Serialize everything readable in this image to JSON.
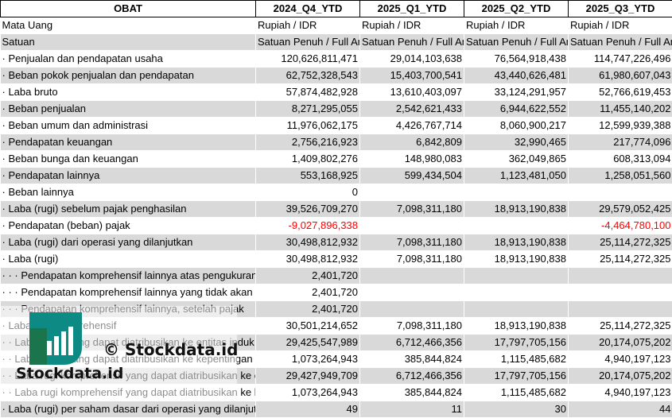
{
  "header": {
    "label": "OBAT",
    "periods": [
      "2024_Q4_YTD",
      "2025_Q1_YTD",
      "2025_Q2_YTD",
      "2025_Q3_YTD"
    ]
  },
  "rows": [
    {
      "label": "Mata Uang",
      "values": [
        "Rupiah / IDR",
        "Rupiah / IDR",
        "Rupiah / IDR",
        "Rupiah / IDR"
      ],
      "align": "left"
    },
    {
      "label": "Satuan",
      "values": [
        "Satuan Penuh / Full Amount",
        "Satuan Penuh / Full Amount",
        "Satuan Penuh / Full Amount",
        "Satuan Penuh / Full Amount"
      ],
      "align": "left"
    },
    {
      "label": "· Penjualan dan pendapatan usaha",
      "values": [
        "120,626,811,471",
        "29,014,103,638",
        "76,564,918,438",
        "114,747,226,496"
      ]
    },
    {
      "label": "· Beban pokok penjualan dan pendapatan",
      "values": [
        "62,752,328,543",
        "15,403,700,541",
        "43,440,626,481",
        "61,980,607,043"
      ]
    },
    {
      "label": "· Laba bruto",
      "values": [
        "57,874,482,928",
        "13,610,403,097",
        "33,124,291,957",
        "52,766,619,453"
      ]
    },
    {
      "label": "· Beban penjualan",
      "values": [
        "8,271,295,055",
        "2,542,621,433",
        "6,944,622,552",
        "11,455,140,202"
      ]
    },
    {
      "label": "· Beban umum dan administrasi",
      "values": [
        "11,976,062,175",
        "4,426,767,714",
        "8,060,900,217",
        "12,599,939,388"
      ]
    },
    {
      "label": "· Pendapatan keuangan",
      "values": [
        "2,756,216,923",
        "6,842,809",
        "32,990,465",
        "217,774,096"
      ]
    },
    {
      "label": "· Beban bunga dan keuangan",
      "values": [
        "1,409,802,276",
        "148,980,083",
        "362,049,865",
        "608,313,094"
      ]
    },
    {
      "label": "· Pendapatan lainnya",
      "values": [
        "553,168,925",
        "599,434,504",
        "1,123,481,050",
        "1,258,051,560"
      ]
    },
    {
      "label": "· Beban lainnya",
      "values": [
        "0",
        "",
        "",
        ""
      ]
    },
    {
      "label": "· Laba (rugi) sebelum pajak penghasilan",
      "values": [
        "39,526,709,270",
        "7,098,311,180",
        "18,913,190,838",
        "29,579,052,425"
      ]
    },
    {
      "label": "· Pendapatan (beban) pajak",
      "values": [
        "-9,027,896,338",
        "",
        "",
        "-4,464,780,100"
      ],
      "negative": [
        true,
        false,
        false,
        true
      ]
    },
    {
      "label": "· Laba (rugi) dari operasi yang dilanjutkan",
      "values": [
        "30,498,812,932",
        "7,098,311,180",
        "18,913,190,838",
        "25,114,272,325"
      ]
    },
    {
      "label": "· Laba (rugi)",
      "values": [
        "30,498,812,932",
        "7,098,311,180",
        "18,913,190,838",
        "25,114,272,325"
      ]
    },
    {
      "label": "· · · Pendapatan komprehensif lainnya atas pengukuran kembali",
      "values": [
        "2,401,720",
        "",
        "",
        ""
      ]
    },
    {
      "label": "· · · Pendapatan komprehensif lainnya yang tidak akan direklasifikasi",
      "values": [
        "2,401,720",
        "",
        "",
        ""
      ]
    },
    {
      "label": "· · · Pendapatan komprehensif lainnya, setelah pajak",
      "values": [
        "2,401,720",
        "",
        "",
        ""
      ]
    },
    {
      "label": "· Laba rugi komprehensif",
      "values": [
        "30,501,214,652",
        "7,098,311,180",
        "18,913,190,838",
        "25,114,272,325"
      ]
    },
    {
      "label": "· · Laba (rugi) yang dapat diatribusikan ke entitas induk",
      "values": [
        "29,425,547,989",
        "6,712,466,356",
        "17,797,705,156",
        "20,174,075,202"
      ]
    },
    {
      "label": "· · Laba (rugi) yang dapat diatribusikan ke kepentingan non-pengendali",
      "values": [
        "1,073,264,943",
        "385,844,824",
        "1,115,485,682",
        "4,940,197,123"
      ]
    },
    {
      "label": "· · Laba rugi komprehensif yang dapat diatribusikan ke entitas induk",
      "values": [
        "29,427,949,709",
        "6,712,466,356",
        "17,797,705,156",
        "20,174,075,202"
      ]
    },
    {
      "label": "· · Laba rugi komprehensif yang dapat diatribusikan ke kepentingan non-pengendali",
      "values": [
        "1,073,264,943",
        "385,844,824",
        "1,115,485,682",
        "4,940,197,123"
      ]
    },
    {
      "label": "· Laba (rugi) per saham dasar dari operasi yang dilanjutkan",
      "values": [
        "49",
        "11",
        "30",
        "44"
      ]
    }
  ],
  "watermark": {
    "text": "© Stockdata.id",
    "brand": "Stockdata.id"
  },
  "colors": {
    "negative": "#ff0000",
    "row_alt": "#d9d9d9",
    "logo_teal": "#0e8a84",
    "logo_green": "#2e7d32"
  }
}
